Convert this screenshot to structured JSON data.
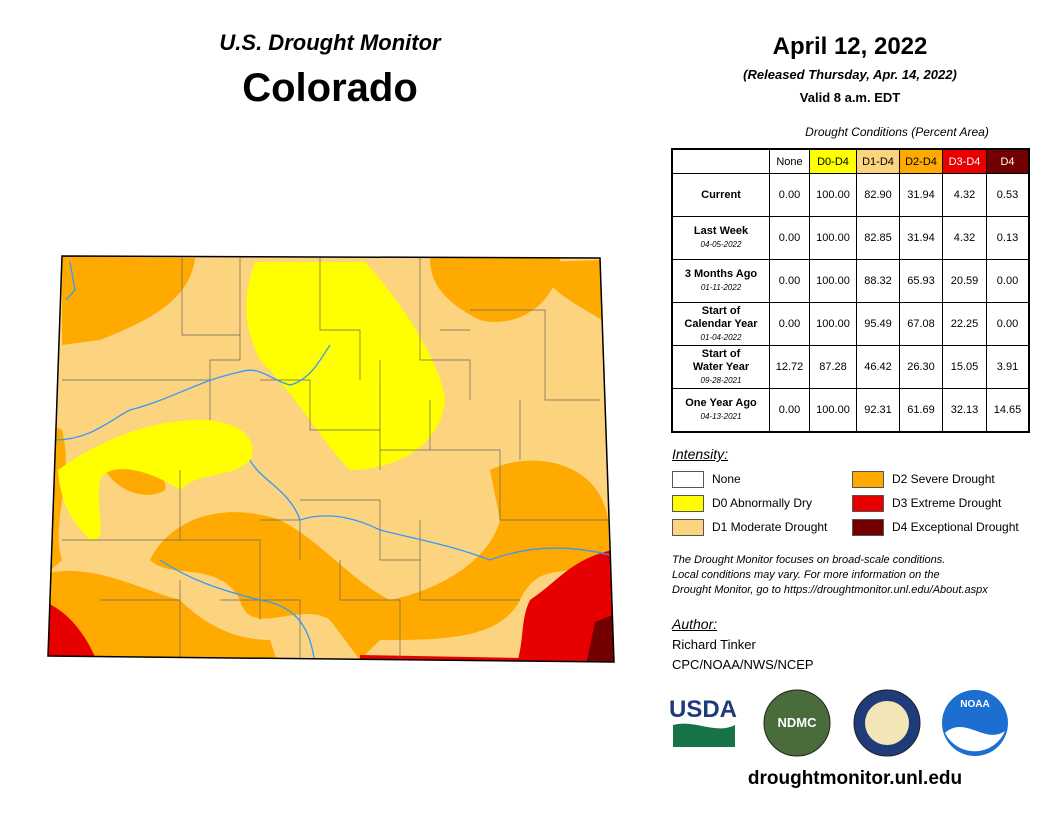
{
  "header": {
    "program": "U.S. Drought Monitor",
    "state": "Colorado",
    "date": "April 12, 2022",
    "released": "(Released Thursday, Apr. 14, 2022)",
    "valid": "Valid 8 a.m. EDT"
  },
  "table": {
    "caption": "Drought Conditions (Percent Area)",
    "columns": [
      "None",
      "D0-D4",
      "D1-D4",
      "D2-D4",
      "D3-D4",
      "D4"
    ],
    "rows": [
      {
        "label": [
          "Current"
        ],
        "values": [
          "0.00",
          "100.00",
          "82.90",
          "31.94",
          "4.32",
          "0.53"
        ]
      },
      {
        "label": [
          "Last Week"
        ],
        "date": "04-05-2022",
        "values": [
          "0.00",
          "100.00",
          "82.85",
          "31.94",
          "4.32",
          "0.13"
        ]
      },
      {
        "label": [
          "3 Months Ago"
        ],
        "date": "01-11-2022",
        "values": [
          "0.00",
          "100.00",
          "88.32",
          "65.93",
          "20.59",
          "0.00"
        ]
      },
      {
        "label": [
          "Start of",
          "Calendar Year"
        ],
        "date": "01-04-2022",
        "values": [
          "0.00",
          "100.00",
          "95.49",
          "67.08",
          "22.25",
          "0.00"
        ]
      },
      {
        "label": [
          "Start of",
          "Water Year"
        ],
        "date": "09-28-2021",
        "values": [
          "12.72",
          "87.28",
          "46.42",
          "26.30",
          "15.05",
          "3.91"
        ]
      },
      {
        "label": [
          "One Year Ago"
        ],
        "date": "04-13-2021",
        "values": [
          "0.00",
          "100.00",
          "92.31",
          "61.69",
          "32.13",
          "14.65"
        ]
      }
    ]
  },
  "legend": {
    "title": "Intensity:",
    "items": [
      {
        "label": "None",
        "color": "#ffffff"
      },
      {
        "label": "D0 Abnormally Dry",
        "color": "#ffff00"
      },
      {
        "label": "D1 Moderate Drought",
        "color": "#fcd37f"
      },
      {
        "label": "D2 Severe Drought",
        "color": "#ffaa00"
      },
      {
        "label": "D3 Extreme Drought",
        "color": "#e60000"
      },
      {
        "label": "D4 Exceptional Drought",
        "color": "#730000"
      }
    ]
  },
  "note": [
    "The Drought Monitor focuses on broad-scale conditions.",
    "Local conditions may vary. For more information on the",
    "Drought Monitor, go to https://droughtmonitor.unl.edu/About.aspx"
  ],
  "author": {
    "heading": "Author:",
    "name": "Richard Tinker",
    "org": "CPC/NOAA/NWS/NCEP"
  },
  "logos": [
    "USDA",
    "NDMC",
    "NOAA"
  ],
  "url": "droughtmonitor.unl.edu"
}
